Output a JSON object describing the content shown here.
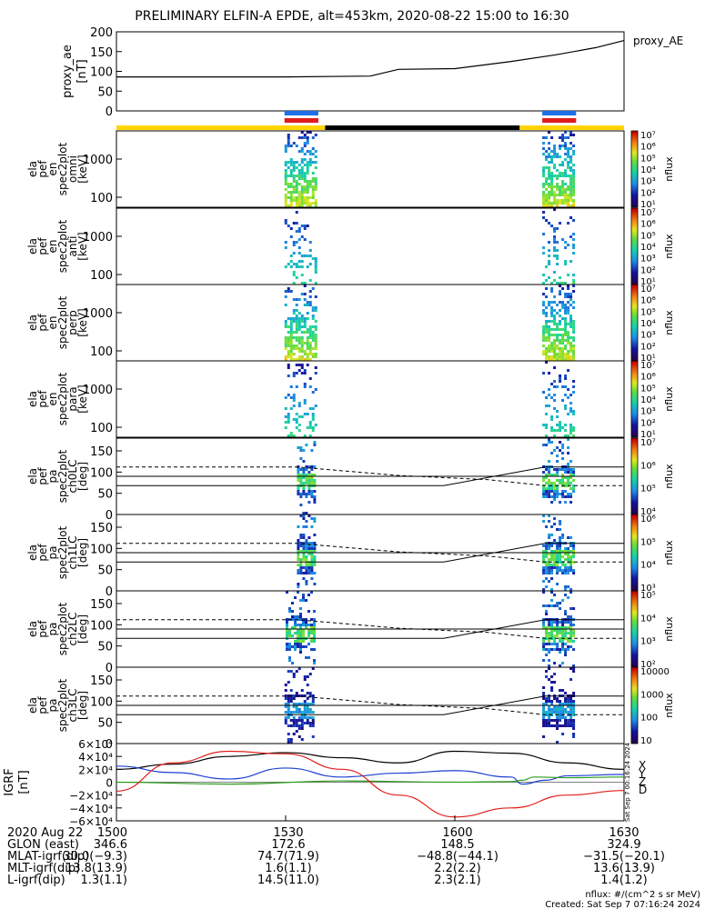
{
  "title": "PRELIMINARY ELFIN-A EPDE, alt=453km, 2020-08-22 15:00 to 16:30",
  "colors": {
    "bar_yellow": "#ffd400",
    "bar_black": "#000000",
    "bar_blue": "#1e6fe8",
    "bar_red": "#e21b1b",
    "grf_x": "#000000",
    "grf_y": "#1d3fd0",
    "grf_z": "#2a9d1a",
    "grf_d": "#e0201b"
  },
  "chart_data": [
    {
      "type": "line",
      "id": "proxy_ae",
      "ylabel_lines": [
        "proxy_ae",
        "[nT]"
      ],
      "legend": "proxy_AE",
      "ylim": [
        0,
        200
      ],
      "yticks": [
        "0",
        "50",
        "100",
        "150",
        "200"
      ],
      "x_minutes": [
        0,
        30,
        45,
        50,
        60,
        70,
        78,
        85,
        90
      ],
      "values": [
        86,
        86,
        88,
        105,
        107,
        125,
        142,
        160,
        178
      ]
    },
    {
      "type": "bar",
      "id": "science-zone-bar",
      "segments": [
        {
          "from_min": 0,
          "to_min": 37,
          "color": "yellow"
        },
        {
          "from_min": 37,
          "to_min": 71.5,
          "color": "black"
        },
        {
          "from_min": 71.5,
          "to_min": 90,
          "color": "yellow"
        }
      ],
      "ticks": [
        {
          "from_min": 29.8,
          "to_min": 35.8
        },
        {
          "from_min": 75.5,
          "to_min": 81.5
        }
      ]
    },
    {
      "type": "heatmap",
      "id": "omni",
      "ylabel_lines": [
        "ela",
        "pef",
        "en",
        "spec2plot",
        "omni",
        "[keV]"
      ],
      "yticks": [
        "100",
        "1000"
      ],
      "cbar_ticks": [
        "10⁷",
        "10⁶",
        "10⁵",
        "10⁴",
        "10³",
        "10²",
        "10¹"
      ],
      "cbar_label": "nflux",
      "bursts_min": [
        [
          29.8,
          35.8
        ],
        [
          75.5,
          81.5
        ]
      ]
    },
    {
      "type": "heatmap",
      "id": "anti",
      "ylabel_lines": [
        "ela",
        "pef",
        "en",
        "spec2plot",
        "anti",
        "[keV]"
      ],
      "yticks": [
        "100",
        "1000"
      ],
      "cbar_ticks": [
        "10⁷",
        "10⁶",
        "10⁵",
        "10⁴",
        "10³",
        "10²",
        "10¹"
      ],
      "cbar_label": "nflux",
      "bursts_min": [
        [
          29.8,
          35.8
        ],
        [
          75.5,
          81.5
        ]
      ]
    },
    {
      "type": "heatmap",
      "id": "perp",
      "ylabel_lines": [
        "ela",
        "pef",
        "en",
        "spec2plot",
        "perp",
        "[keV]"
      ],
      "yticks": [
        "100",
        "1000"
      ],
      "cbar_ticks": [
        "10⁷",
        "10⁶",
        "10⁵",
        "10⁴",
        "10³",
        "10²",
        "10¹"
      ],
      "cbar_label": "nflux",
      "bursts_min": [
        [
          29.8,
          35.8
        ],
        [
          75.5,
          81.5
        ]
      ]
    },
    {
      "type": "heatmap",
      "id": "para",
      "ylabel_lines": [
        "ela",
        "pef",
        "en",
        "spec2plot",
        "para",
        "[keV]"
      ],
      "yticks": [
        "100",
        "1000"
      ],
      "cbar_ticks": [
        "10⁷",
        "10⁶",
        "10⁵",
        "10⁴",
        "10³",
        "10²",
        "10¹"
      ],
      "cbar_label": "nflux",
      "bursts_min": [
        [
          29.8,
          35.8
        ],
        [
          75.5,
          81.5
        ]
      ]
    },
    {
      "type": "heatmap",
      "id": "ch0LC",
      "ylabel_lines": [
        "ela",
        "pef",
        "pa",
        "spec2plot",
        "ch0LC",
        "[deg]"
      ],
      "ylim": [
        0,
        180
      ],
      "yticks": [
        "0",
        "50",
        "100",
        "150"
      ],
      "cbar_ticks": [
        "10⁷",
        "10⁶",
        "10⁵",
        "10⁴"
      ],
      "cbar_label": "nflux",
      "bursts_min": [
        [
          32,
          35.6
        ],
        [
          75.5,
          81.5
        ]
      ]
    },
    {
      "type": "heatmap",
      "id": "ch1LC",
      "ylabel_lines": [
        "ela",
        "pef",
        "pa",
        "spec2plot",
        "ch1LC",
        "[deg]"
      ],
      "ylim": [
        0,
        180
      ],
      "yticks": [
        "0",
        "50",
        "100",
        "150"
      ],
      "cbar_ticks": [
        "10⁶",
        "10⁵",
        "10⁴",
        "10³"
      ],
      "cbar_label": "nflux",
      "bursts_min": [
        [
          32,
          35.6
        ],
        [
          75.5,
          81.5
        ]
      ]
    },
    {
      "type": "heatmap",
      "id": "ch2LC",
      "ylabel_lines": [
        "ela",
        "pef",
        "pa",
        "spec2plot",
        "ch2LC",
        "[deg]"
      ],
      "ylim": [
        0,
        180
      ],
      "yticks": [
        "0",
        "50",
        "100",
        "150"
      ],
      "cbar_ticks": [
        "10⁵",
        "10⁴",
        "10³",
        "10²"
      ],
      "cbar_label": "nflux",
      "bursts_min": [
        [
          30,
          35.6
        ],
        [
          75.5,
          81.5
        ]
      ]
    },
    {
      "type": "heatmap",
      "id": "ch3LC",
      "ylabel_lines": [
        "ela",
        "pef",
        "pa",
        "spec2plot",
        "ch3LC",
        "[deg]"
      ],
      "ylim": [
        0,
        180
      ],
      "yticks": [
        "0",
        "50",
        "100",
        "150"
      ],
      "cbar_ticks": [
        "10000",
        "1000",
        "100",
        "10"
      ],
      "cbar_label": "nflux",
      "bursts_min": [
        [
          29.8,
          35.6
        ],
        [
          75.5,
          81.5
        ]
      ]
    },
    {
      "type": "line",
      "id": "igrf",
      "ylabel_lines": [
        "IGRF",
        "[nT]"
      ],
      "ylim": [
        -60000,
        60000
      ],
      "yticks": [
        "6×10⁴",
        "4×10⁴",
        "2×10⁴",
        "0",
        "−2×10⁴",
        "−4×10⁴",
        "−6×10⁴"
      ],
      "legend": [
        "X",
        "Y",
        "Z",
        "D"
      ],
      "series": [
        {
          "name": "X",
          "color": "grf_x",
          "x_minutes": [
            0,
            10,
            20,
            30,
            40,
            50,
            60,
            70,
            80,
            90
          ],
          "values": [
            20000,
            28000,
            40000,
            46000,
            38000,
            30000,
            48000,
            45000,
            30000,
            20000
          ]
        },
        {
          "name": "Y",
          "color": "grf_y",
          "x_minutes": [
            0,
            10,
            20,
            30,
            40,
            50,
            60,
            70,
            72,
            76,
            80,
            90
          ],
          "values": [
            25000,
            15000,
            5000,
            22000,
            8000,
            14000,
            18000,
            8000,
            -3000,
            3000,
            10000,
            12000
          ]
        },
        {
          "name": "Z",
          "color": "grf_z",
          "x_minutes": [
            0,
            20,
            40,
            60,
            70,
            72,
            74,
            80,
            90
          ],
          "values": [
            0,
            -3000,
            2000,
            0,
            1000,
            3000,
            8000,
            7000,
            8000
          ]
        },
        {
          "name": "D",
          "color": "grf_d",
          "x_minutes": [
            0,
            10,
            20,
            30,
            40,
            50,
            60,
            70,
            80,
            90
          ],
          "values": [
            -14000,
            30000,
            48000,
            44000,
            20000,
            -20000,
            -54000,
            -40000,
            -20000,
            -13000
          ]
        }
      ]
    }
  ],
  "sidebar_timestamp": "Sat Sep  7 00:16:24 2024",
  "xaxis": {
    "rows": [
      {
        "label": "2020 Aug 22",
        "values": [
          "1500",
          "1530",
          "1600",
          "1630"
        ]
      },
      {
        "label": "GLON (east)",
        "values": [
          "346.6",
          "172.6",
          "148.5",
          "324.9"
        ]
      },
      {
        "label": "MLAT-igrf(dip)",
        "values": [
          "30.0(−9.3)",
          "74.7(71.9)",
          "−48.8(−44.1)",
          "−31.5(−20.1)"
        ]
      },
      {
        "label": "MLT-igrf(dip)",
        "values": [
          "13.8(13.9)",
          "1.6(1.1)",
          "2.2(2.2)",
          "13.6(13.9)"
        ]
      },
      {
        "label": "L-igrf(dip)",
        "values": [
          "1.3(1.1)",
          "14.5(11.0)",
          "2.3(2.1)",
          "1.4(1.2)"
        ]
      }
    ]
  },
  "footer": {
    "units": "nflux: #/(cm^2 s sr MeV)",
    "created": "Created: Sat Sep  7 07:16:24 2024"
  }
}
